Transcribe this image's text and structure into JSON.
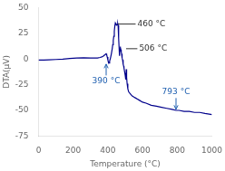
{
  "chart_data": {
    "type": "line",
    "xlabel": "Temperature (°C)",
    "ylabel": "DTA(μV)",
    "xlim": [
      0,
      1000
    ],
    "ylim": [
      -75,
      50
    ],
    "xticks": [
      0,
      200,
      400,
      600,
      800,
      1000
    ],
    "yticks": [
      -75,
      -50,
      -25,
      0,
      25,
      50
    ],
    "grid": false,
    "legend": false,
    "color": "#00008B",
    "x": [
      0,
      30,
      60,
      100,
      140,
      180,
      220,
      260,
      300,
      320,
      340,
      355,
      365,
      372,
      378,
      382,
      386,
      390,
      393,
      396,
      400,
      403,
      406,
      410,
      415,
      420,
      425,
      428,
      431,
      434,
      437,
      440,
      443,
      446,
      449,
      452,
      455,
      457,
      459,
      461,
      463,
      465,
      467,
      469,
      471,
      473,
      475,
      477,
      479,
      481,
      483,
      485,
      487,
      489,
      491,
      493,
      496,
      500,
      503,
      506,
      508,
      511,
      515,
      520,
      530,
      540,
      550,
      560,
      570,
      580,
      600,
      620,
      650,
      680,
      710,
      740,
      770,
      793,
      810,
      840,
      870,
      900,
      930,
      960,
      1000
    ],
    "values": [
      -1,
      -1,
      -0.8,
      -0.5,
      -0.2,
      0.5,
      1,
      1.2,
      1,
      1,
      1,
      1.5,
      2,
      2.5,
      3.5,
      4,
      4.5,
      5,
      4,
      2,
      -1,
      -3,
      -4,
      -2,
      1,
      5,
      10,
      14,
      18,
      22,
      27,
      32,
      35,
      34,
      33,
      33.5,
      34,
      34.5,
      33,
      30,
      20,
      10,
      3,
      8,
      12,
      11,
      9,
      7,
      5,
      3,
      1,
      -1,
      -3,
      -5,
      -7,
      -9,
      -12,
      -16,
      -20,
      -10,
      -18,
      -24,
      -29,
      -32,
      -34,
      -36,
      -37,
      -38,
      -39,
      -40,
      -42,
      -43,
      -45,
      -46,
      -47,
      -48,
      -49,
      -50,
      -50,
      -51,
      -51,
      -52,
      -52,
      -53,
      -54
    ],
    "annotations": [
      {
        "text": "460 °C",
        "xy": [
          457,
          34
        ],
        "xytext": [
          560,
          34
        ],
        "color": "#333333",
        "arrow": false
      },
      {
        "text": "506 °C",
        "xy": [
          505,
          10
        ],
        "xytext": [
          570,
          10
        ],
        "color": "#333333",
        "arrow": false
      },
      {
        "text": "390 °C",
        "xy": [
          390,
          -5
        ],
        "xytext": [
          390,
          -16
        ],
        "color": "#2060b0",
        "arrow": true
      },
      {
        "text": "793 °C",
        "xy": [
          793,
          -49
        ],
        "xytext": [
          793,
          -38
        ],
        "color": "#2060b0",
        "arrow": true
      }
    ]
  }
}
